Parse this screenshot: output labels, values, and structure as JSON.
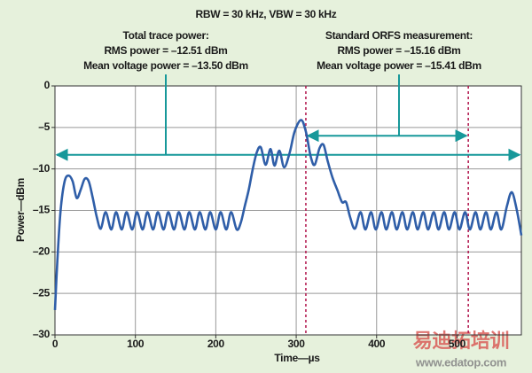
{
  "chart_data": {
    "type": "line",
    "title": "RBW = 30 kHz, VBW = 30 kHz",
    "annotations": [
      {
        "lines": [
          "Total trace power:",
          "RMS power = –12.51 dBm",
          "Mean voltage power = –13.50 dBm"
        ]
      },
      {
        "lines": [
          "Standard ORFS measurement:",
          "RMS power = –15.16 dBm",
          "Mean voltage power = –15.41 dBm"
        ]
      }
    ],
    "xlabel": "Time—µs",
    "ylabel": "Power—dBm",
    "watermark": [
      "易迪拓培训",
      "www.edatop.com"
    ],
    "xlim": [
      0,
      580
    ],
    "ylim": [
      -30,
      0
    ],
    "xticks": [
      0,
      100,
      200,
      300,
      400,
      500
    ],
    "yticks": [
      0,
      {
        "value": -5,
        "label": "–5"
      },
      {
        "value": -10,
        "label": "–10"
      },
      {
        "value": -15,
        "label": "–15"
      },
      {
        "value": -20,
        "label": "–20"
      },
      {
        "value": -25,
        "label": "–25"
      },
      {
        "value": -30,
        "label": "–30"
      }
    ],
    "grid": true,
    "vlines": [
      312,
      514
    ],
    "vline_color": "#b0124a",
    "arrows": [
      {
        "y": -8.3,
        "x": [
          0,
          580
        ]
      },
      {
        "y": -6,
        "x": [
          312,
          514
        ]
      }
    ],
    "arrow_color": "#17989a",
    "x": [
      0,
      3,
      7,
      12,
      17,
      22,
      27,
      32,
      37,
      42,
      47,
      52,
      57,
      63,
      70,
      76,
      83,
      89,
      96,
      102,
      109,
      115,
      122,
      128,
      135,
      141,
      148,
      154,
      161,
      167,
      174,
      180,
      187,
      193,
      200,
      206,
      213,
      219,
      226,
      231,
      236,
      241,
      246,
      251,
      256,
      262,
      268,
      273,
      279,
      285,
      292,
      298,
      306,
      312,
      318,
      323,
      329,
      334,
      339,
      345,
      351,
      357,
      362,
      367,
      373,
      380,
      386,
      393,
      399,
      406,
      412,
      419,
      425,
      432,
      438,
      445,
      451,
      458,
      464,
      471,
      477,
      484,
      490,
      497,
      503,
      510,
      516,
      523,
      529,
      536,
      542,
      549,
      555,
      562,
      568,
      574,
      580
    ],
    "series": [
      {
        "color": "#2f5ea8",
        "values": [
          -27,
          -21,
          -15,
          -11.5,
          -10.8,
          -11.5,
          -13.5,
          -12.5,
          -11.2,
          -11.5,
          -13.5,
          -15.8,
          -17.2,
          -15.2,
          -17.3,
          -15.2,
          -17.3,
          -15.2,
          -17.3,
          -15.2,
          -17.3,
          -15.2,
          -17.3,
          -15.2,
          -17.3,
          -15.2,
          -17.3,
          -15.2,
          -17.3,
          -15.2,
          -17.3,
          -15.2,
          -17.3,
          -15.2,
          -17.3,
          -15.2,
          -17.3,
          -15.2,
          -17.3,
          -16.5,
          -14.5,
          -12.5,
          -10,
          -8,
          -7.4,
          -9.5,
          -7.6,
          -9.6,
          -7.8,
          -9.8,
          -8,
          -5.5,
          -4.1,
          -5.5,
          -8.5,
          -9.5,
          -7.5,
          -7.1,
          -9,
          -11,
          -12.5,
          -14,
          -14,
          -15.8,
          -17.2,
          -15.2,
          -17.3,
          -15.2,
          -17.3,
          -15.2,
          -17.3,
          -15.2,
          -17.3,
          -15.2,
          -17.3,
          -15.2,
          -17.3,
          -15.2,
          -17.3,
          -15.2,
          -17.3,
          -15.2,
          -17.3,
          -15.2,
          -17.3,
          -15.2,
          -17.3,
          -15.2,
          -17.3,
          -15.2,
          -17.3,
          -15.2,
          -17.3,
          -14.5,
          -12.8,
          -14.8,
          -18
        ]
      }
    ]
  }
}
